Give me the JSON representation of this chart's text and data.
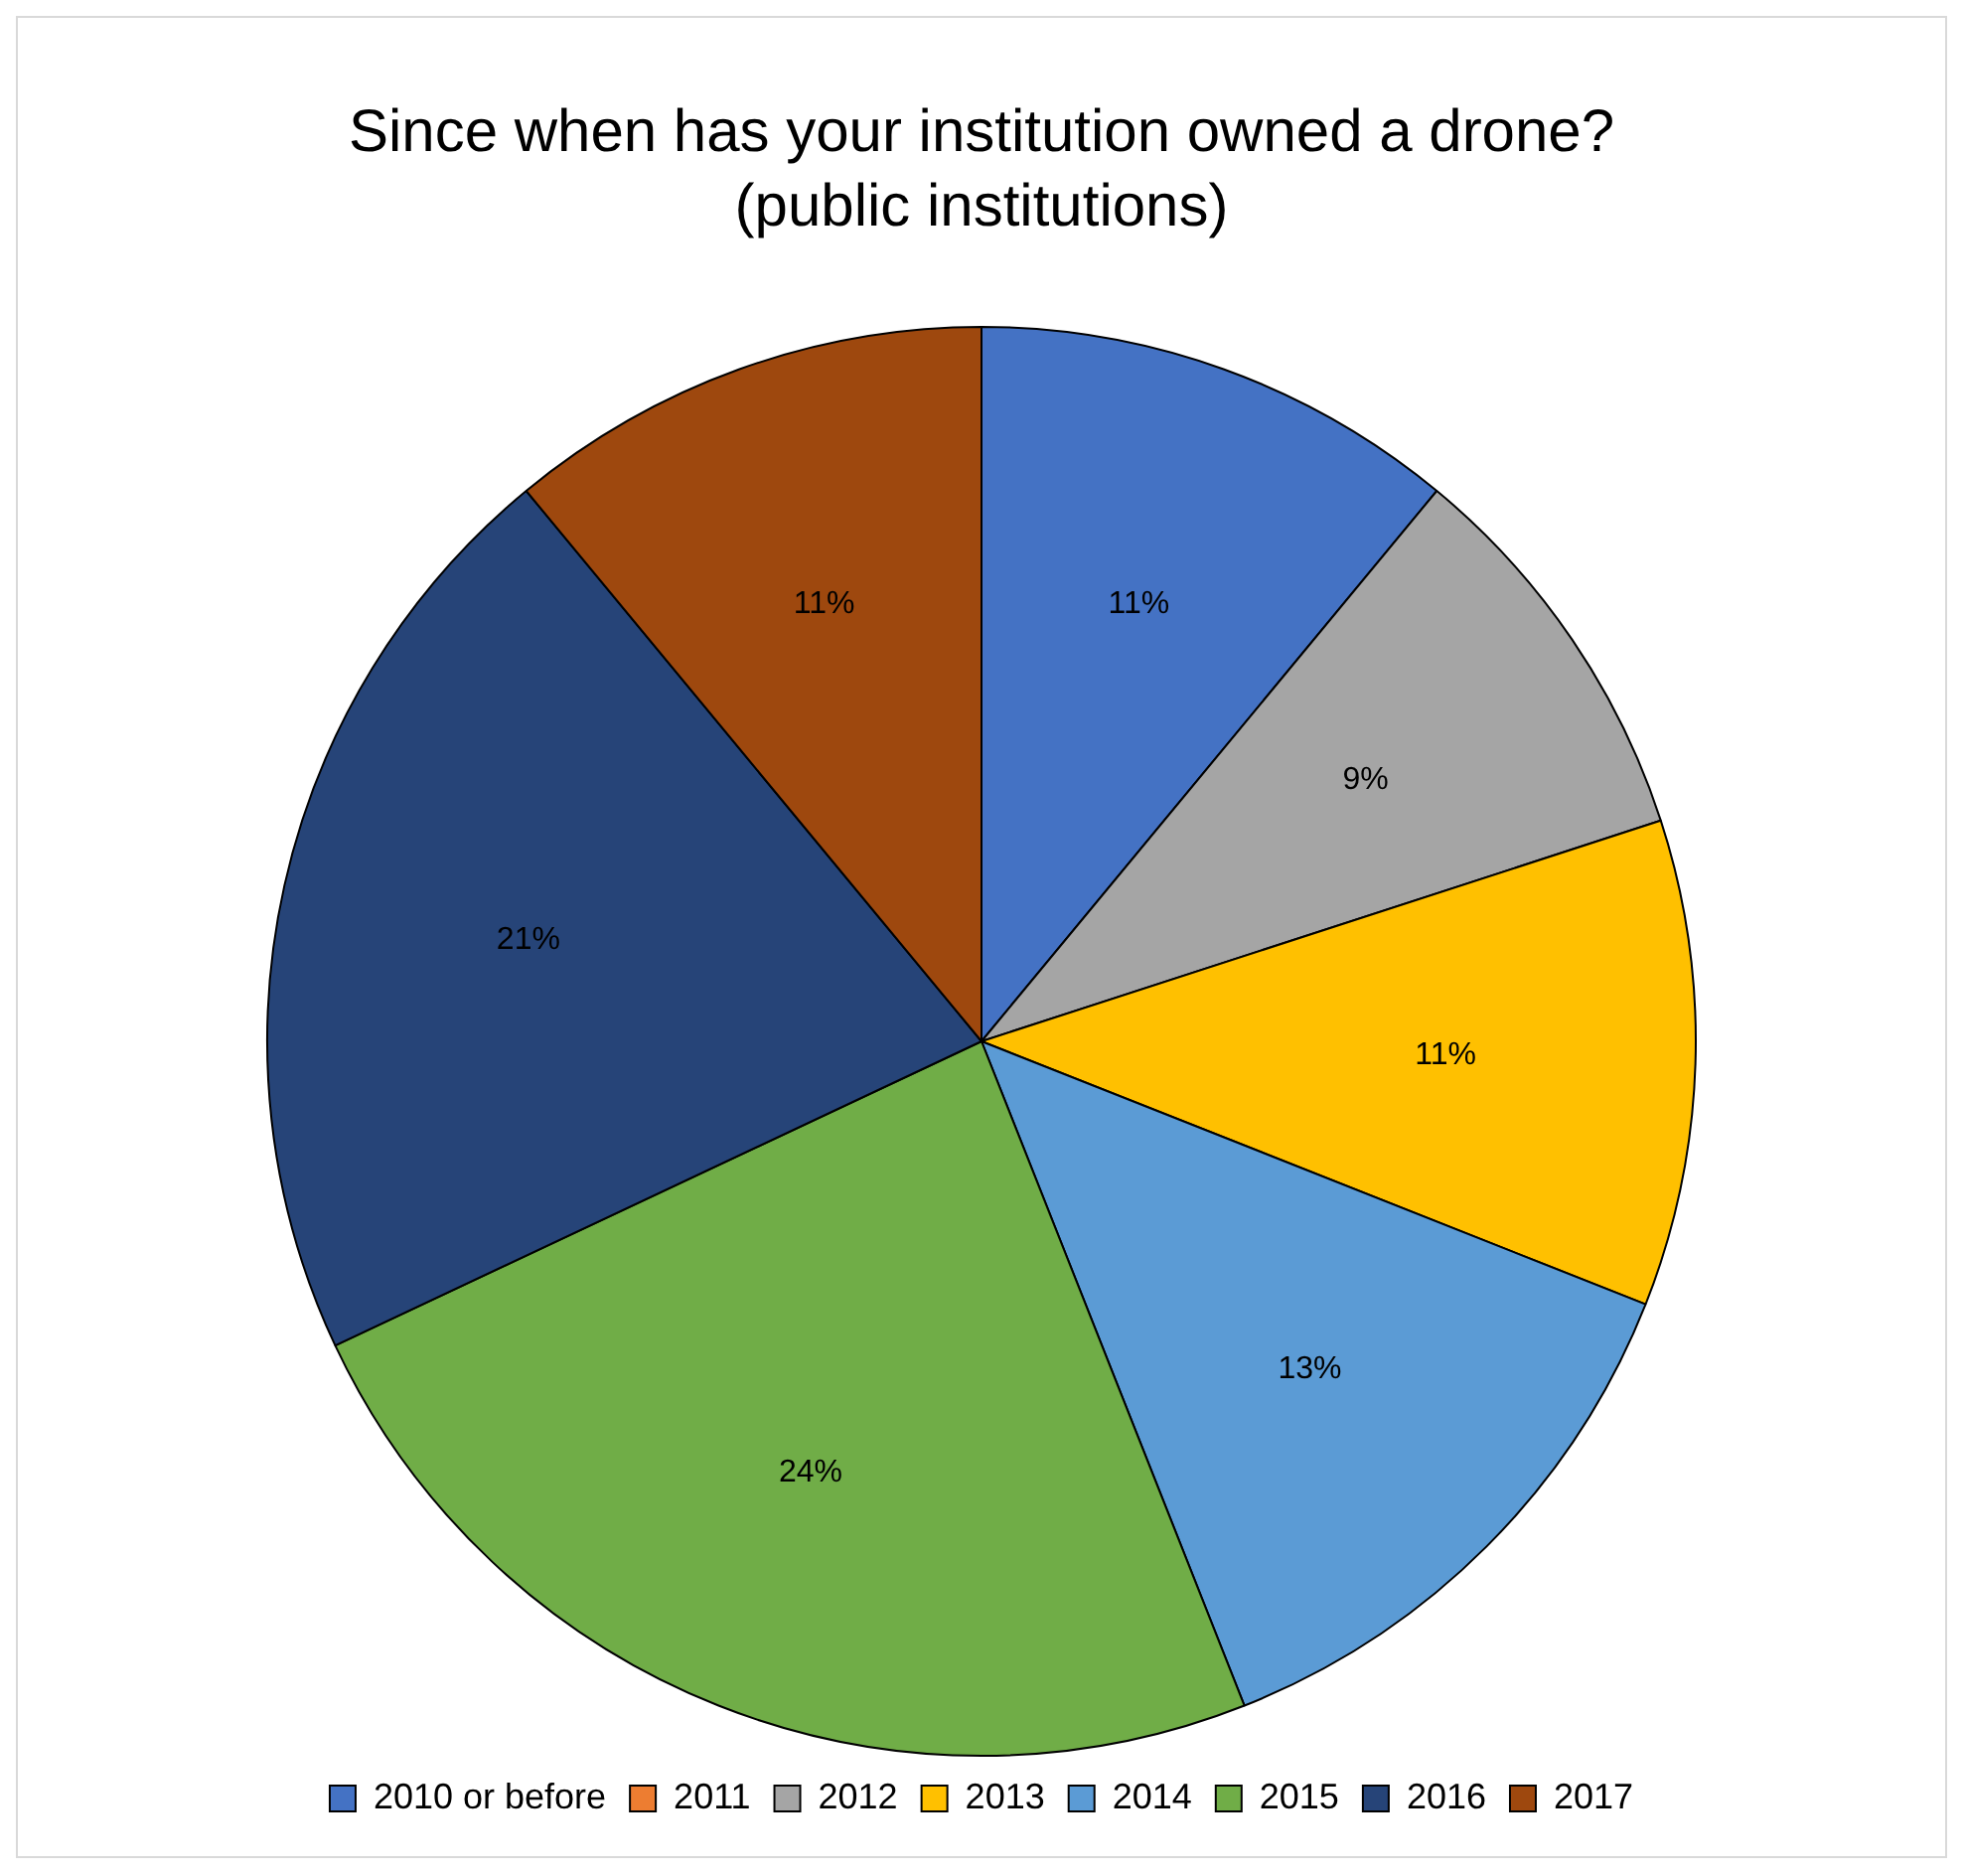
{
  "chart_data": {
    "type": "pie",
    "title": "Since when has your institution owned a drone?",
    "subtitle": "(public institutions)",
    "categories": [
      "2010 or before",
      "2011",
      "2012",
      "2013",
      "2014",
      "2015",
      "2016",
      "2017"
    ],
    "values": [
      11,
      0,
      9,
      11,
      13,
      24,
      21,
      11
    ],
    "colors": [
      "#4472c4",
      "#ed7d31",
      "#a5a5a5",
      "#ffc000",
      "#5b9bd5",
      "#70ad47",
      "#264478",
      "#9e480e"
    ],
    "value_labels": [
      "11%",
      null,
      "9%",
      "11%",
      "13%",
      "24%",
      "21%",
      "11%"
    ],
    "legend": "bottom"
  }
}
